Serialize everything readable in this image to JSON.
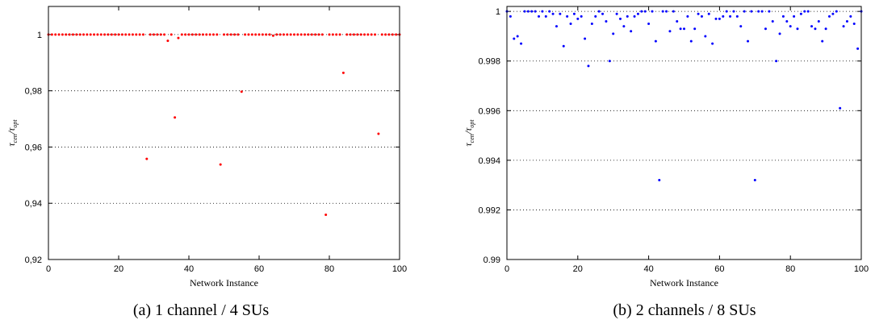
{
  "chart_data": [
    {
      "type": "scatter",
      "caption": "(a) 1 channel / 4 SUs",
      "xlabel": "Network Instance",
      "ylabel": "τ_cen/τ_opt",
      "xlim": [
        0,
        100
      ],
      "ylim": [
        0.92,
        1.01
      ],
      "xticks": [
        0,
        20,
        40,
        60,
        80,
        100
      ],
      "xtick_labels": [
        "0",
        "20",
        "40",
        "60",
        "80",
        "100"
      ],
      "yticks": [
        0.92,
        0.94,
        0.96,
        0.98,
        1.0
      ],
      "ytick_labels": [
        "0,92",
        "0,94",
        "0,96",
        "0,98",
        "1"
      ],
      "grid": "horizontal dotted",
      "color": "#ff0000",
      "default_y": 1.0,
      "outliers": [
        {
          "x": 28,
          "y": 0.9558
        },
        {
          "x": 34,
          "y": 0.9978
        },
        {
          "x": 36,
          "y": 0.9705
        },
        {
          "x": 37,
          "y": 0.9988
        },
        {
          "x": 49,
          "y": 0.9538
        },
        {
          "x": 55,
          "y": 0.9797
        },
        {
          "x": 64,
          "y": 0.9996
        },
        {
          "x": 79,
          "y": 0.9359
        },
        {
          "x": 84,
          "y": 0.9864
        },
        {
          "x": 94,
          "y": 0.9647
        }
      ]
    },
    {
      "type": "scatter",
      "caption": "(b) 2 channels / 8 SUs",
      "xlabel": "Network Instance",
      "ylabel": "τ_cen/τ_opt",
      "xlim": [
        0,
        100
      ],
      "ylim": [
        0.99,
        1.0002
      ],
      "xticks": [
        0,
        20,
        40,
        60,
        80,
        100
      ],
      "xtick_labels": [
        "0",
        "20",
        "40",
        "60",
        "80",
        "100"
      ],
      "yticks": [
        0.99,
        0.992,
        0.994,
        0.996,
        0.998,
        1.0
      ],
      "ytick_labels": [
        "0.99",
        "0.992",
        "0.994",
        "0.996",
        "0.998",
        "1"
      ],
      "grid": "horizontal dotted",
      "color": "#0000ff",
      "values": [
        1.0,
        0.9998,
        0.9989,
        0.999,
        0.9987,
        1.0,
        1.0,
        1.0,
        1.0,
        0.9998,
        1.0,
        0.9998,
        1.0,
        0.9999,
        0.9994,
        0.9999,
        0.9986,
        0.9998,
        0.9995,
        0.9999,
        0.9997,
        0.9998,
        0.9989,
        0.9978,
        0.9995,
        0.9998,
        1.0,
        0.9999,
        0.9996,
        0.998,
        0.9991,
        0.9999,
        0.9997,
        0.9994,
        0.9998,
        0.9992,
        0.9998,
        0.9999,
        1.0,
        1.0,
        0.9995,
        1.0,
        0.9988,
        0.9932,
        1.0,
        1.0,
        0.9992,
        1.0,
        0.9996,
        0.9993,
        0.9993,
        0.9998,
        0.9988,
        0.9993,
        0.9999,
        0.9998,
        0.999,
        0.9999,
        0.9987,
        0.9997,
        0.9997,
        0.9998,
        1.0,
        0.9998,
        1.0,
        0.9998,
        0.9994,
        1.0,
        0.9988,
        1.0,
        0.9932,
        1.0,
        1.0,
        0.9993,
        1.0,
        0.9996,
        0.998,
        0.9991,
        0.9998,
        0.9996,
        0.9994,
        0.9998,
        0.9993,
        0.9999,
        1.0,
        1.0,
        0.9994,
        0.9993,
        0.9996,
        0.9988,
        0.9993,
        0.9998,
        0.9999,
        1.0,
        0.9961,
        0.9994,
        0.9996,
        0.9998,
        0.9995,
        0.9985,
        1.0
      ]
    }
  ]
}
